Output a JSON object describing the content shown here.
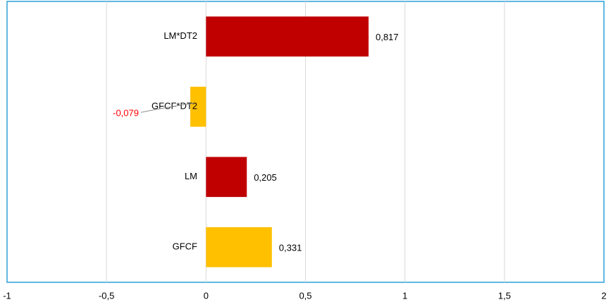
{
  "chart_data": {
    "type": "bar",
    "orientation": "horizontal",
    "categories": [
      "LM*DT2",
      "GFCF*DT2",
      "LM",
      "GFCF"
    ],
    "values": [
      0.817,
      -0.079,
      0.205,
      0.331
    ],
    "value_labels": [
      "0,817",
      "-0,079",
      "0,205",
      "0,331"
    ],
    "colors": [
      "#c00000",
      "#ffc000",
      "#c00000",
      "#ffc000"
    ],
    "value_label_colors": [
      "#000000",
      "#ff0000",
      "#000000",
      "#000000"
    ],
    "xlim": [
      -1,
      2
    ],
    "xticks": [
      -1,
      {
        "value": -0.5,
        "label": "-0,5"
      },
      0,
      {
        "value": 0.5,
        "label": "0,5"
      },
      1,
      {
        "value": 1.5,
        "label": "1,5"
      },
      2
    ],
    "grid": true
  }
}
